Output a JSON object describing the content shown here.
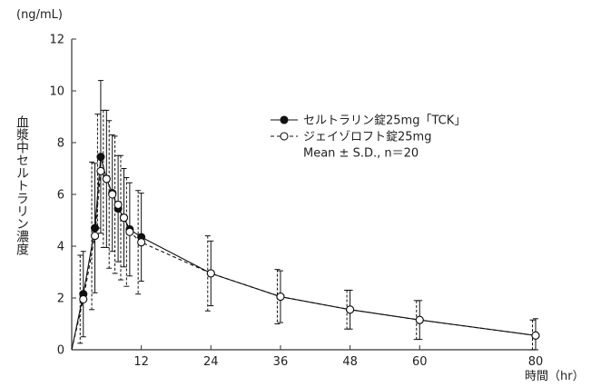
{
  "chart_data": {
    "type": "line",
    "y_unit": "(ng/mL)",
    "ylabel": "血漿中セルトラリン濃度",
    "xlabel": "時間（hr）",
    "xlim": [
      0,
      80
    ],
    "ylim": [
      0,
      12
    ],
    "x_ticks": [
      12,
      24,
      36,
      48,
      60,
      80
    ],
    "y_ticks": [
      0,
      2,
      4,
      6,
      8,
      10,
      12
    ],
    "grid": false,
    "legend_position": "upper-right",
    "legend_note": "Mean ± S.D., n＝20",
    "series": [
      {
        "name": "セルトラリン錠25mg「TCK」",
        "marker": "filled-circle",
        "line_style": "solid",
        "color": "#111111",
        "x": [
          0,
          2,
          4,
          5,
          6,
          7,
          8,
          9,
          10,
          12,
          24,
          36,
          48,
          60,
          80
        ],
        "y": [
          0,
          2.15,
          4.7,
          7.45,
          6.6,
          6.05,
          5.45,
          5.1,
          4.65,
          4.35,
          2.95,
          2.05,
          1.55,
          1.15,
          0.55
        ],
        "sd": [
          0,
          1.65,
          2.5,
          2.95,
          2.65,
          2.25,
          2.05,
          1.9,
          1.8,
          1.7,
          1.25,
          1.0,
          0.75,
          0.75,
          0.65
        ]
      },
      {
        "name": "ジェイゾロフト錠25mg",
        "marker": "open-circle",
        "line_style": "dashed",
        "color": "#111111",
        "x": [
          0,
          2,
          4,
          5,
          6,
          7,
          8,
          9,
          10,
          12,
          24,
          36,
          48,
          60,
          80
        ],
        "y": [
          0,
          1.95,
          4.4,
          6.9,
          6.6,
          6.0,
          5.6,
          5.1,
          4.55,
          4.15,
          2.95,
          2.05,
          1.55,
          1.15,
          0.55
        ],
        "sd": [
          0,
          1.7,
          2.85,
          2.2,
          2.65,
          2.85,
          2.65,
          2.4,
          2.1,
          2.0,
          1.45,
          1.05,
          0.75,
          0.75,
          0.6
        ]
      }
    ]
  }
}
